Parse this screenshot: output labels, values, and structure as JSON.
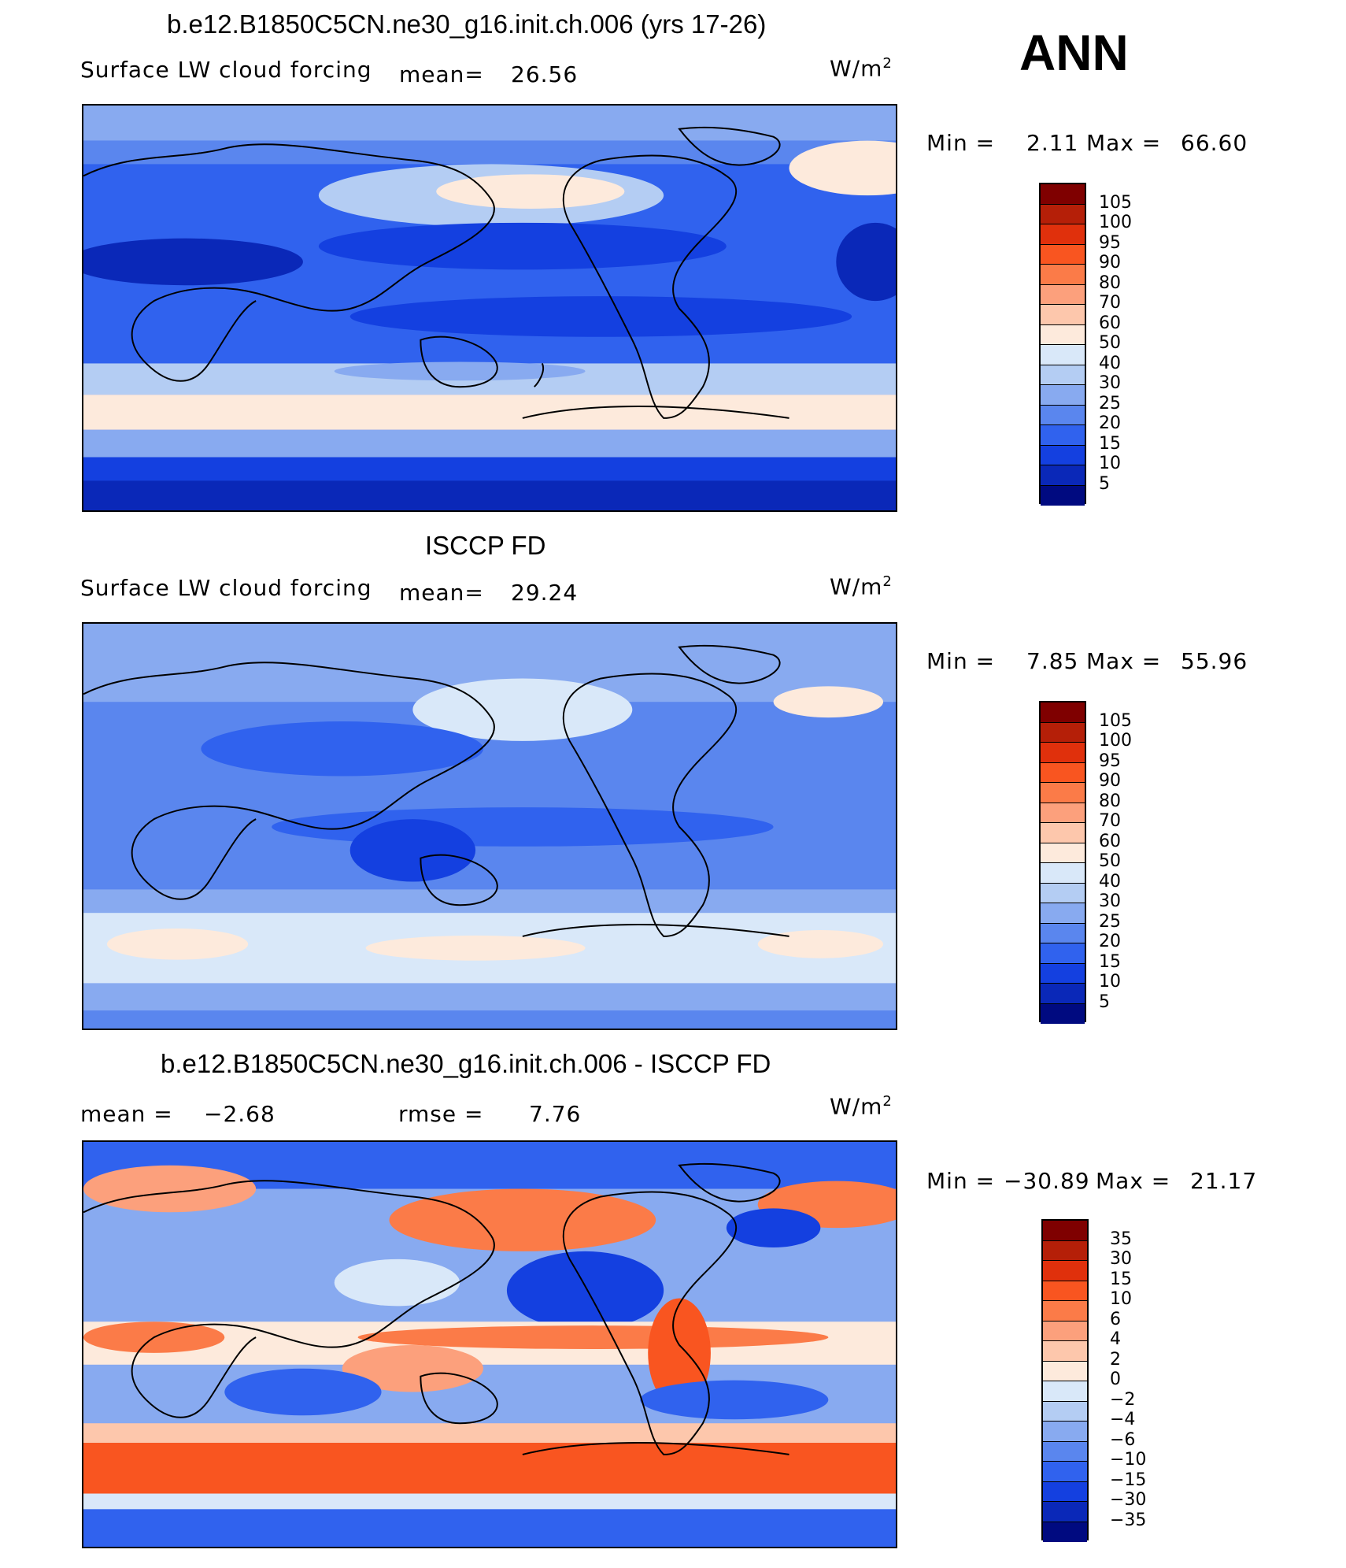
{
  "season": "ANN",
  "panels": [
    {
      "title": "b.e12.B1850C5CN.ne30_g16.init.ch.006 (yrs 17-26)",
      "variable": "Surface LW cloud forcing",
      "mean_label": "mean=",
      "mean_value": "26.56",
      "units": "W/m",
      "units_sup": "2",
      "min_label": "Min =",
      "min_value": "2.11",
      "max_label": "Max =",
      "max_value": "66.60",
      "colorbar_labels": [
        "105",
        "100",
        "95",
        "90",
        "80",
        "70",
        "60",
        "50",
        "40",
        "30",
        "25",
        "20",
        "15",
        "10",
        "5"
      ]
    },
    {
      "title": "ISCCP FD",
      "variable": "Surface LW cloud forcing",
      "mean_label": "mean=",
      "mean_value": "29.24",
      "units": "W/m",
      "units_sup": "2",
      "min_label": "Min =",
      "min_value": "7.85",
      "max_label": "Max =",
      "max_value": "55.96",
      "colorbar_labels": [
        "105",
        "100",
        "95",
        "90",
        "80",
        "70",
        "60",
        "50",
        "40",
        "30",
        "25",
        "20",
        "15",
        "10",
        "5"
      ]
    },
    {
      "title": "b.e12.B1850C5CN.ne30_g16.init.ch.006 - ISCCP FD",
      "mean_label": "mean =",
      "mean_value": "−2.68",
      "rmse_label": "rmse =",
      "rmse_value": "7.76",
      "units": "W/m",
      "units_sup": "2",
      "min_label": "Min =",
      "min_value": "−30.89",
      "max_label": "Max =",
      "max_value": "21.17",
      "colorbar_labels": [
        "35",
        "30",
        "15",
        "10",
        "6",
        "4",
        "2",
        "0",
        "−2",
        "−4",
        "−6",
        "−10",
        "−15",
        "−30",
        "−35"
      ]
    }
  ],
  "colors": {
    "colorbar": [
      "#7f0000",
      "#b51f08",
      "#e0300c",
      "#f95520",
      "#fb7b48",
      "#fca07c",
      "#fdc7ac",
      "#fdeadc",
      "#d9e8f9",
      "#b4cdf3",
      "#88aaf0",
      "#5a86ee",
      "#3062ee",
      "#1440e0",
      "#0a28b8",
      "#000a80"
    ],
    "land_outline": "#000000"
  }
}
